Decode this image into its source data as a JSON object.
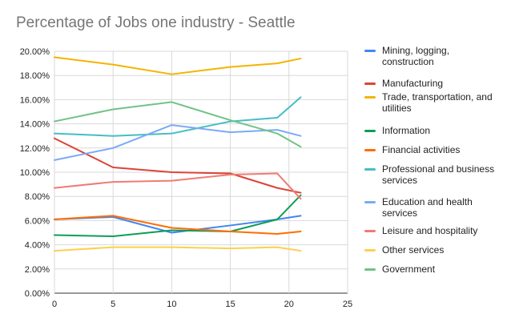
{
  "chart_data": {
    "type": "line",
    "title": "Percentage of Jobs one industry - Seattle",
    "xlabel": "",
    "ylabel": "",
    "xlim": [
      0,
      25
    ],
    "ylim": [
      0,
      20
    ],
    "x_ticks": [
      0,
      5,
      10,
      15,
      20,
      25
    ],
    "x_tick_labels": [
      "0",
      "5",
      "10",
      "15",
      "20",
      "25"
    ],
    "y_ticks": [
      0,
      2,
      4,
      6,
      8,
      10,
      12,
      14,
      16,
      18,
      20
    ],
    "y_tick_labels": [
      "0.00%",
      "2.00%",
      "4.00%",
      "6.00%",
      "8.00%",
      "10.00%",
      "12.00%",
      "14.00%",
      "16.00%",
      "18.00%",
      "20.00%"
    ],
    "grid": true,
    "legend_position": "right",
    "x": [
      0,
      5,
      10,
      15,
      19,
      21
    ],
    "series": [
      {
        "name": "Mining, logging, construction",
        "color": "#4285f4",
        "values": [
          6.1,
          6.3,
          5.0,
          5.6,
          6.1,
          6.4
        ]
      },
      {
        "name": "Manufacturing",
        "color": "#db4437",
        "values": [
          12.8,
          10.4,
          10.0,
          9.9,
          8.7,
          8.3
        ]
      },
      {
        "name": "Trade, transportation, and utilities",
        "color": "#f4b400",
        "values": [
          19.5,
          18.9,
          18.1,
          18.7,
          19.0,
          19.4
        ]
      },
      {
        "name": "Information",
        "color": "#0f9d58",
        "values": [
          4.8,
          4.7,
          5.2,
          5.1,
          6.1,
          8.1
        ]
      },
      {
        "name": "Financial activities",
        "color": "#ff6d01",
        "values": [
          6.1,
          6.4,
          5.4,
          5.1,
          4.9,
          5.1
        ]
      },
      {
        "name": "Professional and business services",
        "color": "#46bdc6",
        "values": [
          13.2,
          13.0,
          13.2,
          14.2,
          14.5,
          16.2
        ]
      },
      {
        "name": "Education and health services",
        "color": "#7baaf7",
        "values": [
          11.0,
          12.0,
          13.9,
          13.3,
          13.5,
          13.0
        ]
      },
      {
        "name": "Leisure and hospitality",
        "color": "#f07b72",
        "values": [
          8.7,
          9.2,
          9.3,
          9.8,
          9.9,
          7.8
        ]
      },
      {
        "name": "Other services",
        "color": "#fcd04f",
        "values": [
          3.5,
          3.8,
          3.8,
          3.7,
          3.8,
          3.5
        ]
      },
      {
        "name": "Government",
        "color": "#71c287",
        "values": [
          14.2,
          15.2,
          15.8,
          14.3,
          13.2,
          12.1
        ]
      }
    ]
  }
}
